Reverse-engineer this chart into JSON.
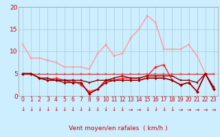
{
  "background_color": "#cceeff",
  "grid_color": "#aacccc",
  "xlabel": "Vent moyen/en rafales  ( km/h )",
  "xlim": [
    -0.5,
    23.5
  ],
  "ylim": [
    0,
    20
  ],
  "yticks": [
    0,
    5,
    10,
    15,
    20
  ],
  "xticks": [
    0,
    1,
    2,
    3,
    4,
    5,
    6,
    7,
    8,
    9,
    10,
    11,
    12,
    13,
    14,
    15,
    16,
    17,
    18,
    19,
    20,
    21,
    22,
    23
  ],
  "series": [
    {
      "x": [
        0,
        1,
        2,
        3,
        4,
        5,
        6,
        7,
        8,
        9,
        10,
        11,
        12,
        13,
        14,
        15,
        16,
        17,
        18,
        19,
        20,
        21,
        22,
        23
      ],
      "y": [
        11.5,
        8.5,
        8.5,
        8.0,
        7.5,
        6.5,
        6.5,
        6.5,
        6.0,
        9.5,
        11.5,
        9.0,
        9.5,
        13.0,
        15.0,
        18.0,
        16.5,
        10.5,
        10.5,
        10.5,
        11.5,
        9.0,
        5.0,
        5.0
      ],
      "color": "#ff9999",
      "linewidth": 1.0,
      "marker": "s",
      "markersize": 2.0
    },
    {
      "x": [
        0,
        1,
        2,
        3,
        4,
        5,
        6,
        7,
        8,
        9,
        10,
        11,
        12,
        13,
        14,
        15,
        16,
        17,
        18,
        19,
        20,
        21,
        22,
        23
      ],
      "y": [
        5.0,
        5.0,
        5.0,
        5.0,
        5.0,
        5.0,
        5.0,
        5.0,
        5.0,
        5.0,
        5.0,
        5.0,
        5.0,
        5.0,
        5.0,
        5.0,
        5.0,
        5.0,
        5.0,
        5.0,
        5.0,
        5.0,
        5.0,
        5.0
      ],
      "color": "#dd4444",
      "linewidth": 1.0,
      "marker": "s",
      "markersize": 2.0
    },
    {
      "x": [
        0,
        1,
        2,
        3,
        4,
        5,
        6,
        7,
        8,
        9,
        10,
        11,
        12,
        13,
        14,
        15,
        16,
        17,
        18,
        19,
        20,
        21,
        22,
        23
      ],
      "y": [
        5.0,
        5.0,
        4.0,
        3.5,
        4.0,
        3.5,
        3.5,
        2.5,
        1.0,
        1.5,
        3.5,
        3.5,
        4.0,
        4.0,
        4.0,
        4.5,
        6.5,
        7.0,
        3.5,
        2.5,
        3.0,
        1.0,
        5.0,
        1.5
      ],
      "color": "#ff2222",
      "linewidth": 1.0,
      "marker": "D",
      "markersize": 2.0
    },
    {
      "x": [
        0,
        1,
        2,
        3,
        4,
        5,
        6,
        7,
        8,
        9,
        10,
        11,
        12,
        13,
        14,
        15,
        16,
        17,
        18,
        19,
        20,
        21,
        22,
        23
      ],
      "y": [
        5.0,
        5.0,
        4.0,
        3.5,
        3.5,
        3.5,
        3.0,
        3.0,
        0.5,
        1.5,
        3.5,
        3.5,
        3.5,
        3.5,
        3.5,
        4.0,
        4.0,
        4.0,
        3.5,
        2.5,
        3.0,
        1.0,
        5.0,
        1.5
      ],
      "color": "#cc0000",
      "linewidth": 1.0,
      "marker": "D",
      "markersize": 2.0
    },
    {
      "x": [
        0,
        1,
        2,
        3,
        4,
        5,
        6,
        7,
        8,
        9,
        10,
        11,
        12,
        13,
        14,
        15,
        16,
        17,
        18,
        19,
        20,
        21,
        22,
        23
      ],
      "y": [
        5.0,
        5.0,
        4.0,
        3.5,
        3.5,
        3.0,
        3.0,
        3.0,
        0.5,
        1.5,
        3.0,
        3.5,
        3.5,
        3.5,
        3.5,
        4.0,
        4.0,
        4.0,
        3.5,
        2.5,
        3.0,
        1.0,
        5.0,
        1.5
      ],
      "color": "#990000",
      "linewidth": 1.0,
      "marker": "D",
      "markersize": 1.8
    },
    {
      "x": [
        0,
        1,
        2,
        3,
        4,
        5,
        6,
        7,
        8,
        9,
        10,
        11,
        12,
        13,
        14,
        15,
        16,
        17,
        18,
        19,
        20,
        21,
        22,
        23
      ],
      "y": [
        5.0,
        5.0,
        4.0,
        4.0,
        3.5,
        3.5,
        3.5,
        3.5,
        3.0,
        3.5,
        3.5,
        4.0,
        4.5,
        4.0,
        4.0,
        4.5,
        4.5,
        4.5,
        4.5,
        3.5,
        3.5,
        3.0,
        5.0,
        2.0
      ],
      "color": "#880000",
      "linewidth": 1.0,
      "marker": "s",
      "markersize": 1.8
    }
  ],
  "wind_arrows": [
    "↓",
    "↓",
    "↓",
    "↓",
    "↓",
    "↓",
    "↓",
    "↓",
    "↓",
    "↓",
    "↓",
    "↓",
    "↓",
    "→",
    "→",
    "↓",
    "↓",
    "↓",
    "↓",
    "→",
    "→",
    "→",
    "→",
    "→"
  ],
  "tick_fontsize": 5.5,
  "label_fontsize": 6.5,
  "tick_color": "#cc0000",
  "label_color": "#cc0000"
}
